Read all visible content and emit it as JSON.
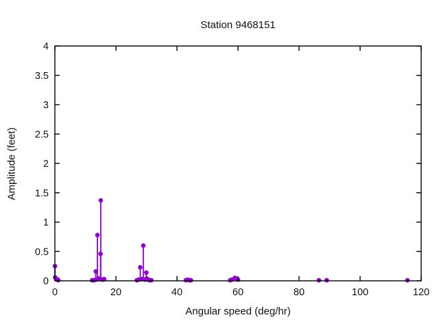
{
  "chart_data": {
    "type": "stem",
    "title": "Station 9468151",
    "xlabel": "Angular speed (deg/hr)",
    "ylabel": "Amplitude (feet)",
    "xlim": [
      0,
      120
    ],
    "ylim": [
      0,
      4
    ],
    "xticks": [
      0,
      20,
      40,
      60,
      80,
      100,
      120
    ],
    "xtick_labels": [
      "0",
      "20",
      "40",
      "60",
      "80",
      "100",
      "120"
    ],
    "yticks": [
      0,
      0.5,
      1,
      1.5,
      2,
      2.5,
      3,
      3.5,
      4
    ],
    "ytick_labels": [
      "0",
      "0.5",
      "1",
      "1.5",
      "2",
      "2.5",
      "3",
      "3.5",
      "4"
    ],
    "grid": false,
    "legend": null,
    "marker_color": "#9400d3",
    "axis_color": "#000000",
    "points": [
      [
        0.04,
        0.25
      ],
      [
        0.08,
        0.06
      ],
      [
        0.54,
        0.03
      ],
      [
        1.02,
        0.02
      ],
      [
        1.1,
        0.01
      ],
      [
        12.2,
        0.01
      ],
      [
        12.85,
        0.01
      ],
      [
        13.4,
        0.16
      ],
      [
        13.47,
        0.02
      ],
      [
        13.94,
        0.78
      ],
      [
        14.49,
        0.04
      ],
      [
        14.96,
        0.46
      ],
      [
        15.04,
        1.37
      ],
      [
        15.58,
        0.02
      ],
      [
        16.14,
        0.03
      ],
      [
        26.87,
        0.01
      ],
      [
        27.42,
        0.02
      ],
      [
        27.97,
        0.23
      ],
      [
        28.44,
        0.03
      ],
      [
        28.98,
        0.6
      ],
      [
        29.53,
        0.02
      ],
      [
        29.96,
        0.14
      ],
      [
        30.08,
        0.04
      ],
      [
        30.63,
        0.02
      ],
      [
        31.02,
        0.01
      ],
      [
        31.6,
        0.01
      ],
      [
        42.93,
        0.01
      ],
      [
        43.48,
        0.02
      ],
      [
        44.03,
        0.01
      ],
      [
        44.57,
        0.01
      ],
      [
        57.42,
        0.01
      ],
      [
        57.97,
        0.02
      ],
      [
        58.98,
        0.05
      ],
      [
        60.0,
        0.02
      ],
      [
        86.5,
        0.01
      ],
      [
        89.05,
        0.01
      ],
      [
        115.5,
        0.01
      ]
    ]
  }
}
